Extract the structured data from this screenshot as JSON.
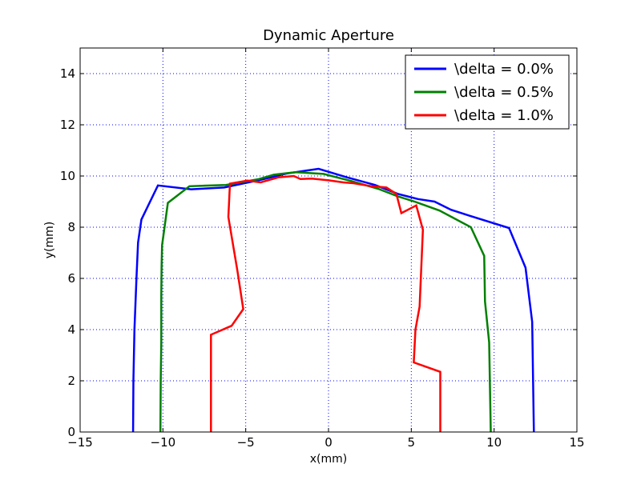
{
  "chart_data": {
    "type": "line",
    "title": "Dynamic Aperture",
    "xlabel": "x(mm)",
    "ylabel": "y(mm)",
    "xlim": [
      -15,
      15
    ],
    "ylim": [
      0,
      15
    ],
    "xticks": [
      -15,
      -10,
      -5,
      0,
      5,
      10,
      15
    ],
    "yticks": [
      0,
      2,
      4,
      6,
      8,
      10,
      12,
      14
    ],
    "xtick_labels": [
      "−15",
      "−10",
      "−5",
      "0",
      "5",
      "10",
      "15"
    ],
    "ytick_labels": [
      "0",
      "2",
      "4",
      "6",
      "8",
      "10",
      "12",
      "14"
    ],
    "grid": true,
    "legend_position": "top-right",
    "series": [
      {
        "name": "\\delta = 0.0%",
        "color": "#0000ff",
        "x": [
          -11.8,
          -11.78,
          -11.72,
          -11.6,
          -11.5,
          -11.3,
          -10.3,
          -8.3,
          -6.3,
          -4.1,
          -2.5,
          -0.6,
          1.1,
          2.8,
          4.2,
          5.4,
          6.4,
          7.4,
          8.5,
          10.9,
          11.9,
          12.3,
          12.4
        ],
        "y": [
          0.0,
          2.0,
          4.0,
          6.0,
          7.4,
          8.3,
          9.63,
          9.48,
          9.55,
          9.85,
          10.1,
          10.28,
          9.95,
          9.65,
          9.3,
          9.1,
          9.0,
          8.68,
          8.45,
          7.97,
          6.42,
          4.3,
          0.0
        ]
      },
      {
        "name": "\\delta = 0.5%",
        "color": "#008000",
        "x": [
          -10.15,
          -10.13,
          -10.1,
          -10.1,
          -10.08,
          -10.05,
          -9.7,
          -8.4,
          -6.2,
          -4.2,
          -3.3,
          -2.0,
          -0.3,
          1.4,
          3.0,
          4.2,
          5.2,
          6.7,
          8.6,
          9.4,
          9.45,
          9.7,
          9.8
        ],
        "y": [
          0.0,
          2.0,
          3.5,
          5.3,
          6.5,
          7.3,
          8.95,
          9.6,
          9.65,
          9.88,
          10.05,
          10.15,
          10.08,
          9.8,
          9.5,
          9.2,
          9.0,
          8.65,
          8.0,
          6.88,
          5.1,
          3.5,
          0.0
        ]
      },
      {
        "name": "\\delta = 1.0%",
        "color": "#ff0000",
        "x": [
          -7.1,
          -7.1,
          -5.85,
          -5.15,
          -5.5,
          -6.05,
          -5.95,
          -4.9,
          -4.1,
          -3.0,
          -2.1,
          -1.7,
          -1.0,
          0.0,
          0.9,
          1.5,
          2.6,
          3.5,
          4.1,
          4.4,
          5.3,
          5.7,
          5.5,
          5.25,
          5.15,
          6.75,
          6.75
        ],
        "y": [
          0.0,
          3.8,
          4.15,
          4.8,
          6.3,
          8.4,
          9.7,
          9.82,
          9.75,
          9.95,
          10.0,
          9.88,
          9.9,
          9.83,
          9.75,
          9.72,
          9.6,
          9.55,
          9.3,
          8.55,
          8.85,
          7.9,
          4.9,
          4.0,
          2.72,
          2.35,
          0.0
        ]
      }
    ]
  }
}
